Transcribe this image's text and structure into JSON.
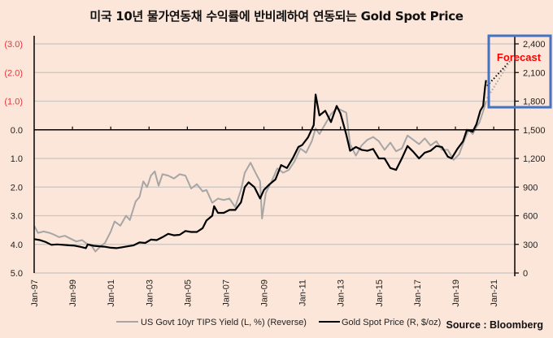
{
  "chart_data": {
    "type": "line",
    "title": "미국 10년 물가연동채 수익률에 반비례하여 연동되는 Gold Spot Price",
    "source": "Source : Bloomberg",
    "x_tick_labels": [
      "Jan-97",
      "Jan-99",
      "Jan-01",
      "Jan-03",
      "Jan-05",
      "Jan-07",
      "Jan-09",
      "Jan-11",
      "Jan-13",
      "Jan-15",
      "Jan-17",
      "Jan-19",
      "Jan-21"
    ],
    "x_range": [
      1997.0,
      2022.1
    ],
    "left_axis": {
      "label": "US Govt 10yr TIPS Yield (%), reversed",
      "reversed": true,
      "range": [
        -3.0,
        5.0
      ],
      "tick_labels": [
        "(3.0)",
        "(2.0)",
        "(1.0)",
        "0.0",
        "1.0",
        "2.0",
        "3.0",
        "4.0",
        "5.0"
      ],
      "tick_values": [
        -3,
        -2,
        -1,
        0,
        1,
        2,
        3,
        4,
        5
      ],
      "negative_label_color": "#e8333a"
    },
    "right_axis": {
      "label": "Gold Spot Price ($/oz)",
      "range": [
        0,
        2400
      ],
      "tick_labels": [
        "2,400",
        "2,100",
        "1,800",
        "1,500",
        "1,200",
        "900",
        "600",
        "300",
        "0"
      ],
      "tick_values": [
        2400,
        2100,
        1800,
        1500,
        1200,
        900,
        600,
        300,
        0
      ]
    },
    "grid": "horizontal",
    "legend_position": "bottom",
    "series": [
      {
        "name": "US Govt 10yr TIPS Yield (L, %) (Reverse)",
        "axis": "left",
        "color": "#a6a6a6",
        "x": [
          1997.0,
          1997.2,
          1997.5,
          1997.8,
          1998.0,
          1998.3,
          1998.6,
          1998.9,
          1999.2,
          1999.5,
          1999.8,
          2000.0,
          2000.2,
          2000.5,
          2000.7,
          2001.0,
          2001.2,
          2001.5,
          2001.8,
          2002.0,
          2002.3,
          2002.5,
          2002.7,
          2002.9,
          2003.1,
          2003.3,
          2003.5,
          2003.7,
          2004.0,
          2004.3,
          2004.6,
          2004.9,
          2005.2,
          2005.5,
          2005.8,
          2006.0,
          2006.3,
          2006.6,
          2006.9,
          2007.2,
          2007.5,
          2007.8,
          2008.0,
          2008.3,
          2008.6,
          2008.8,
          2008.9,
          2009.1,
          2009.4,
          2009.7,
          2010.0,
          2010.3,
          2010.6,
          2010.9,
          2011.2,
          2011.5,
          2011.7,
          2011.9,
          2012.2,
          2012.5,
          2012.8,
          2013.0,
          2013.3,
          2013.5,
          2013.8,
          2014.1,
          2014.4,
          2014.7,
          2015.0,
          2015.3,
          2015.6,
          2015.9,
          2016.2,
          2016.5,
          2016.8,
          2017.1,
          2017.4,
          2017.7,
          2018.0,
          2018.3,
          2018.6,
          2018.9,
          2019.2,
          2019.5,
          2019.7,
          2019.9,
          2020.1,
          2020.25,
          2020.35,
          2020.5,
          2020.6
        ],
        "values": [
          3.35,
          3.6,
          3.55,
          3.6,
          3.65,
          3.75,
          3.7,
          3.8,
          3.9,
          3.85,
          4.0,
          4.05,
          4.25,
          4.05,
          3.95,
          3.55,
          3.2,
          3.35,
          3.0,
          3.15,
          2.5,
          2.35,
          1.8,
          2.0,
          1.6,
          1.45,
          1.95,
          1.55,
          1.6,
          1.7,
          1.55,
          1.6,
          2.05,
          1.9,
          2.15,
          2.1,
          2.55,
          2.4,
          2.45,
          2.4,
          2.7,
          2.1,
          1.5,
          1.15,
          1.55,
          1.8,
          3.1,
          2.2,
          1.8,
          1.35,
          1.5,
          1.4,
          1.1,
          0.65,
          0.8,
          0.4,
          -0.05,
          0.15,
          -0.2,
          -0.55,
          -0.75,
          -0.7,
          -0.6,
          0.5,
          0.9,
          0.55,
          0.35,
          0.25,
          0.4,
          0.7,
          0.45,
          0.75,
          0.65,
          0.2,
          0.35,
          0.5,
          0.3,
          0.55,
          0.4,
          0.7,
          0.7,
          1.05,
          0.85,
          0.3,
          0.0,
          0.15,
          -0.1,
          -0.25,
          -0.45,
          -0.75,
          -1.0
        ]
      },
      {
        "name": "Gold Spot Price (R, $/oz)",
        "axis": "right",
        "color": "#000000",
        "x": [
          1997.0,
          1997.3,
          1997.6,
          1997.9,
          1998.2,
          1998.5,
          1998.8,
          1999.1,
          1999.4,
          1999.7,
          1999.8,
          2000.1,
          2000.4,
          2000.7,
          2001.0,
          2001.3,
          2001.6,
          2001.9,
          2002.2,
          2002.5,
          2002.8,
          2003.1,
          2003.4,
          2003.7,
          2004.0,
          2004.3,
          2004.6,
          2004.9,
          2005.2,
          2005.5,
          2005.8,
          2006.0,
          2006.3,
          2006.4,
          2006.6,
          2006.9,
          2007.2,
          2007.5,
          2007.8,
          2008.0,
          2008.2,
          2008.5,
          2008.8,
          2009.0,
          2009.3,
          2009.6,
          2009.9,
          2010.2,
          2010.5,
          2010.8,
          2011.0,
          2011.3,
          2011.6,
          2011.7,
          2011.9,
          2012.2,
          2012.5,
          2012.8,
          2013.0,
          2013.3,
          2013.5,
          2013.8,
          2014.1,
          2014.4,
          2014.7,
          2015.0,
          2015.3,
          2015.6,
          2015.9,
          2016.2,
          2016.5,
          2016.8,
          2017.1,
          2017.4,
          2017.7,
          2018.0,
          2018.3,
          2018.6,
          2018.8,
          2019.1,
          2019.4,
          2019.6,
          2019.9,
          2020.1,
          2020.3,
          2020.45,
          2020.55,
          2020.6
        ],
        "values": [
          355,
          345,
          325,
          295,
          300,
          295,
          290,
          287,
          275,
          260,
          300,
          285,
          280,
          275,
          265,
          260,
          270,
          280,
          290,
          320,
          315,
          350,
          345,
          375,
          410,
          395,
          400,
          440,
          430,
          430,
          470,
          550,
          600,
          700,
          630,
          630,
          660,
          660,
          740,
          900,
          950,
          900,
          780,
          870,
          930,
          980,
          1130,
          1100,
          1200,
          1320,
          1340,
          1420,
          1550,
          1870,
          1650,
          1700,
          1580,
          1750,
          1670,
          1450,
          1280,
          1320,
          1290,
          1280,
          1300,
          1200,
          1200,
          1100,
          1080,
          1200,
          1330,
          1270,
          1200,
          1260,
          1280,
          1330,
          1320,
          1220,
          1200,
          1300,
          1380,
          1500,
          1480,
          1560,
          1700,
          1750,
          1950,
          2020
        ]
      },
      {
        "name": "Gold forecast",
        "axis": "right",
        "color": "#000000",
        "style": "dotted",
        "x": [
          2020.65,
          2021.9
        ],
        "values": [
          1960,
          2230
        ]
      },
      {
        "name": "TIPS forecast",
        "axis": "left",
        "color": "#a6a6a6",
        "style": "dotted",
        "x": [
          2020.65,
          2021.9
        ],
        "values": [
          -1.1,
          -2.45
        ]
      }
    ],
    "annotations": [
      {
        "text": "Forecast",
        "color": "#ff0000",
        "box_color": "#4472c4"
      }
    ]
  }
}
